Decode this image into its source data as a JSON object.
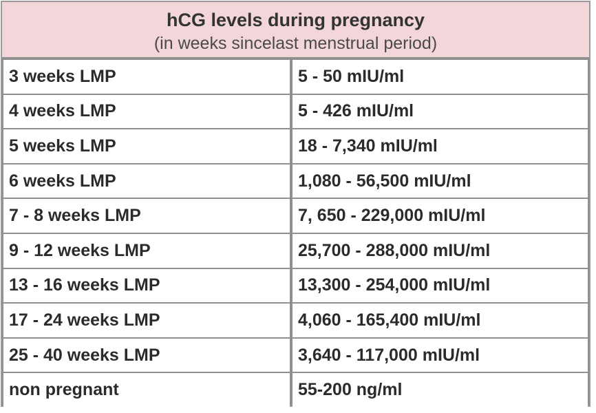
{
  "table": {
    "title": "hCG levels during pregnancy",
    "subtitle": "(in weeks sincelast menstrual period)",
    "rows": [
      {
        "period": "3 weeks LMP",
        "level": "5 - 50 mIU/ml"
      },
      {
        "period": "4 weeks LMP",
        "level": "5 - 426 mIU/ml"
      },
      {
        "period": "5 weeks LMP",
        "level": "18 - 7,340 mIU/ml"
      },
      {
        "period": "6 weeks LMP",
        "level": "1,080 - 56,500 mIU/ml"
      },
      {
        "period": "7 - 8 weeks LMP",
        "level": "7, 650 - 229,000 mIU/ml"
      },
      {
        "period": "9 - 12 weeks LMP",
        "level": "25,700 - 288,000 mIU/ml"
      },
      {
        "period": "13 - 16 weeks LMP",
        "level": "13,300 - 254,000 mIU/ml"
      },
      {
        "period": "17 - 24 weeks LMP",
        "level": "4,060 - 165,400 mIU/ml"
      },
      {
        "period": "25 - 40 weeks LMP",
        "level": "3,640 - 117,000 mIU/ml"
      },
      {
        "period": "non pregnant",
        "level": "55-200 ng/ml"
      }
    ]
  }
}
